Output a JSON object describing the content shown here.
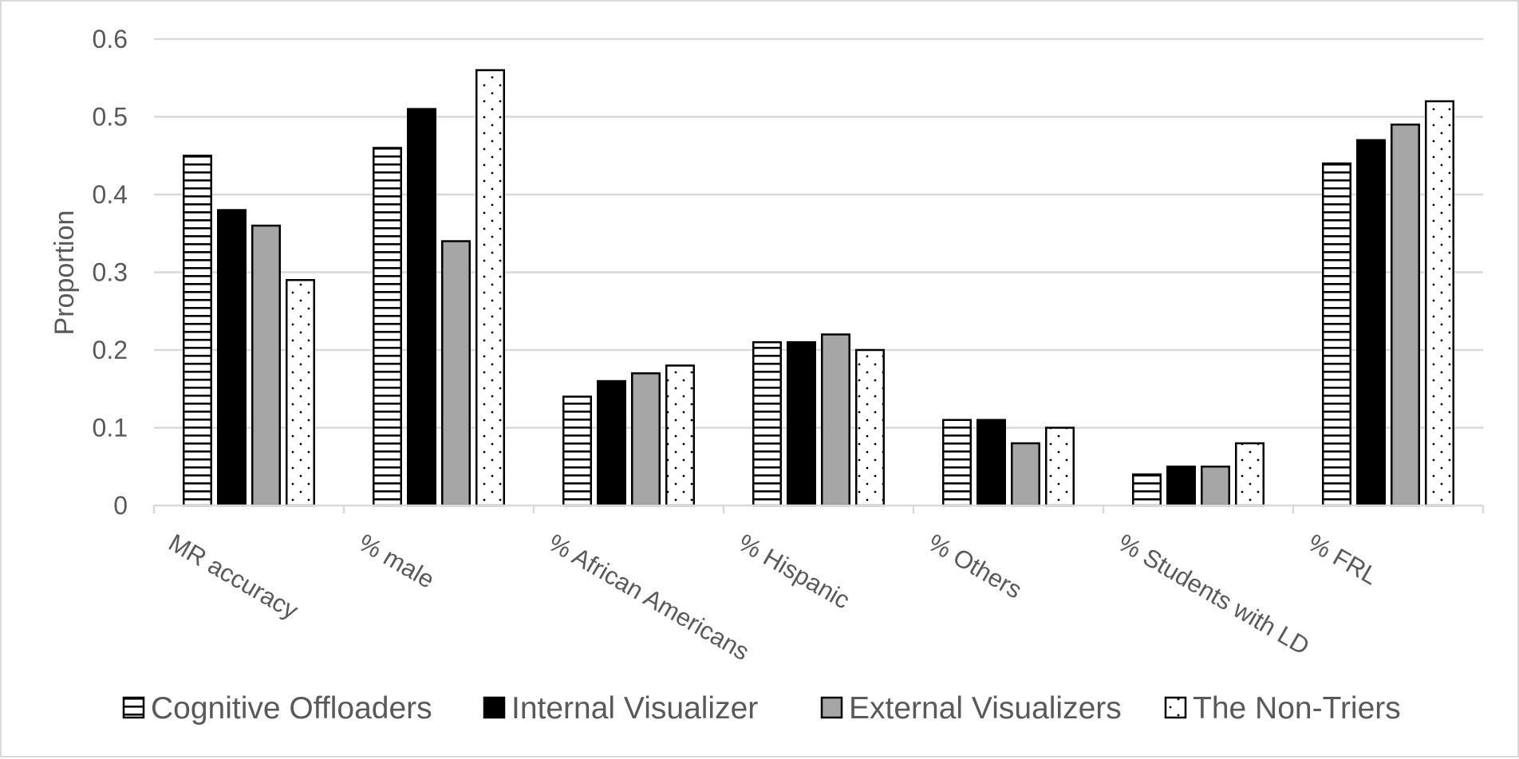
{
  "chart_data": {
    "type": "bar",
    "title": "",
    "xlabel": "",
    "ylabel": "Proportion",
    "ylim": [
      0,
      0.6
    ],
    "yticks": [
      "0",
      "0.1",
      "0.2",
      "0.3",
      "0.4",
      "0.5",
      "0.6"
    ],
    "grid": true,
    "legend_position": "bottom",
    "categories": [
      "MR accuracy",
      "% male",
      "% African Americans",
      "% Hispanic",
      "% Others",
      "% Students with LD",
      "% FRL"
    ],
    "series": [
      {
        "name": "Cognitive Offloaders",
        "pattern": "horizontal-lines",
        "fill": "#ffffff",
        "values": [
          0.45,
          0.46,
          0.14,
          0.21,
          0.11,
          0.04,
          0.44
        ]
      },
      {
        "name": "Internal Visualizer",
        "pattern": "solid",
        "fill": "#000000",
        "values": [
          0.38,
          0.51,
          0.16,
          0.21,
          0.11,
          0.05,
          0.47
        ]
      },
      {
        "name": "External Visualizers",
        "pattern": "solid",
        "fill": "#a6a6a6",
        "values": [
          0.36,
          0.34,
          0.17,
          0.22,
          0.08,
          0.05,
          0.49
        ]
      },
      {
        "name": "The Non-Triers",
        "pattern": "dots",
        "fill": "#ffffff",
        "values": [
          0.29,
          0.56,
          0.18,
          0.2,
          0.1,
          0.08,
          0.52
        ]
      }
    ]
  }
}
